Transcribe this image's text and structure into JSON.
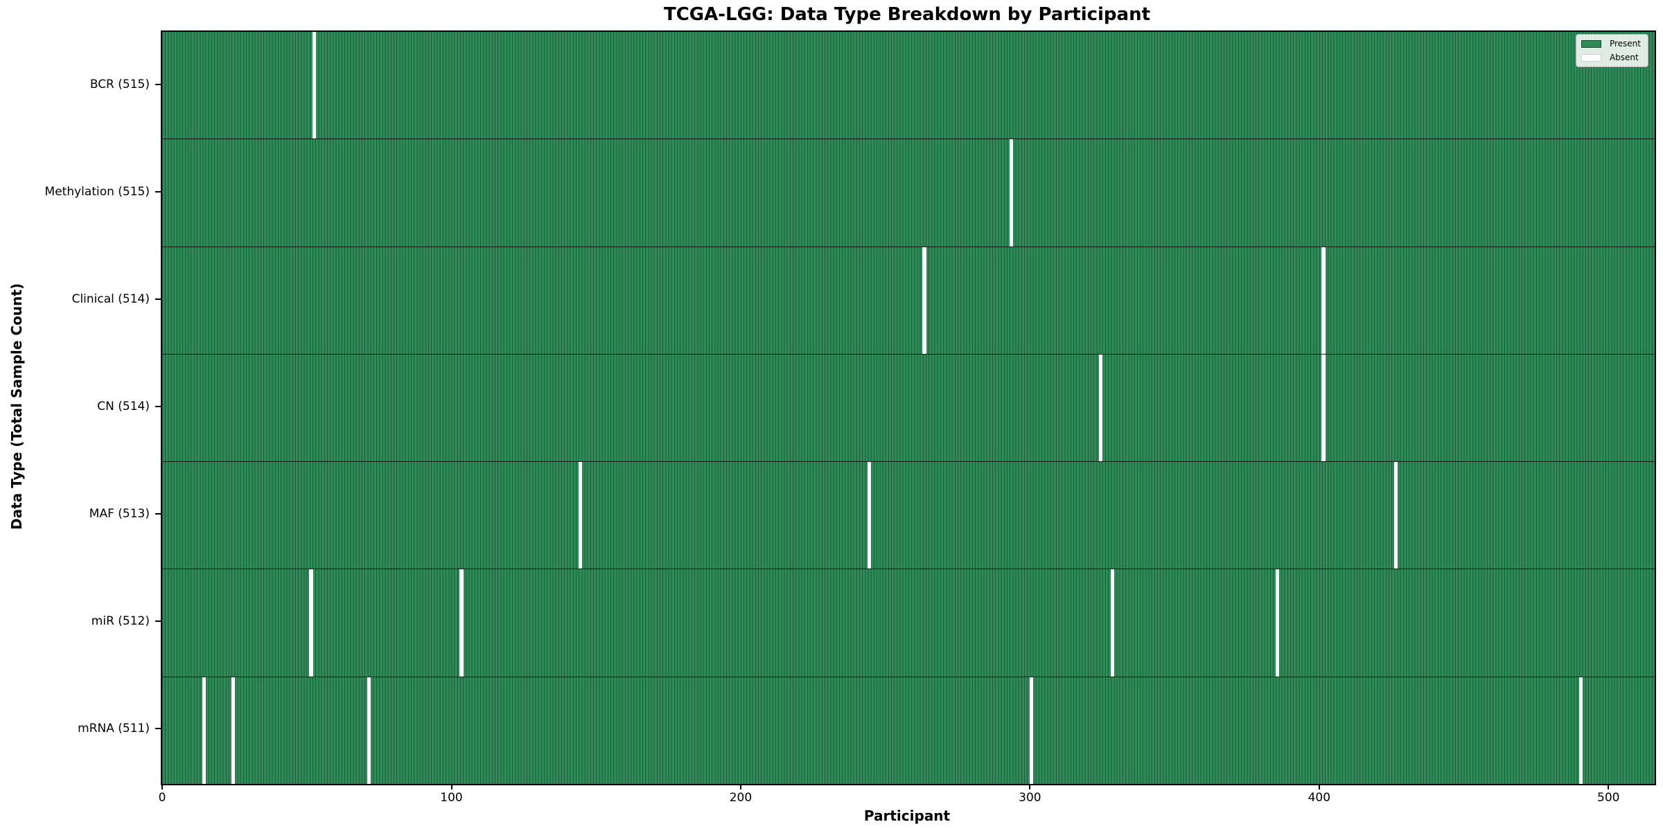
{
  "title": "TCGA-LGG: Data Type Breakdown by Participant",
  "x_axis": {
    "label": "Participant",
    "ticks": [
      "0",
      "100",
      "200",
      "300",
      "400",
      "500"
    ]
  },
  "y_axis": {
    "label": "Data Type (Total Sample Count)"
  },
  "legend": {
    "items": [
      {
        "label": "Present",
        "swatch": "present"
      },
      {
        "label": "Absent",
        "swatch": "absent"
      }
    ]
  },
  "colors": {
    "present": "#2e8b57",
    "bar_edge": "#1f5c3b",
    "absent": "#ffffff",
    "row_separator": "rgba(0,0,0,0.78)",
    "frame": "#000000"
  },
  "chart_data": {
    "type": "heatmap",
    "title": "TCGA-LGG: Data Type Breakdown by Participant",
    "xlabel": "Participant",
    "ylabel": "Data Type (Total Sample Count)",
    "n_participants": 516,
    "x_ticks": [
      0,
      100,
      200,
      300,
      400,
      500
    ],
    "xlim": [
      -0.5,
      515.5
    ],
    "legend_position": "upper right",
    "legend": [
      "Present",
      "Absent"
    ],
    "categories": [
      "BCR (515)",
      "Methylation (515)",
      "Clinical (514)",
      "CN (514)",
      "MAF (513)",
      "miR (512)",
      "mRNA (511)"
    ],
    "rows": [
      {
        "name": "BCR",
        "total": 515,
        "absent_participants": [
          52
        ]
      },
      {
        "name": "Methylation",
        "total": 515,
        "absent_participants": [
          293
        ]
      },
      {
        "name": "Clinical",
        "total": 514,
        "absent_participants": [
          263,
          401
        ]
      },
      {
        "name": "CN",
        "total": 514,
        "absent_participants": [
          324,
          401
        ]
      },
      {
        "name": "MAF",
        "total": 513,
        "absent_participants": [
          144,
          244,
          426
        ]
      },
      {
        "name": "miR",
        "total": 512,
        "absent_participants": [
          51,
          103,
          328,
          385
        ]
      },
      {
        "name": "mRNA",
        "total": 511,
        "absent_participants": [
          14,
          24,
          71,
          300,
          490
        ]
      }
    ]
  }
}
